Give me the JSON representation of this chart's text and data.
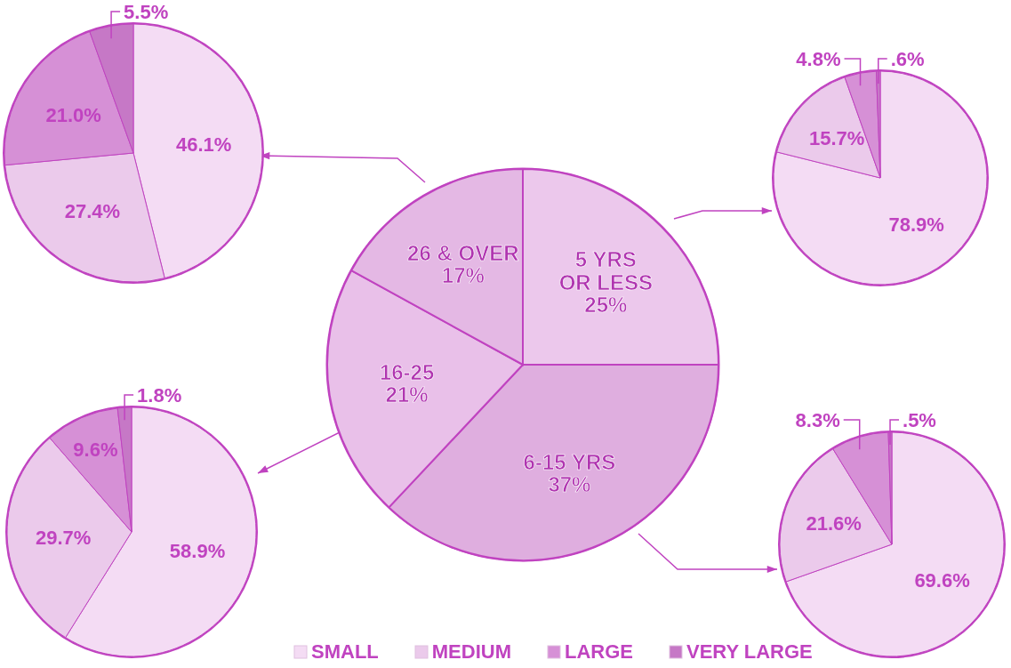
{
  "chart_data": [
    {
      "type": "pie",
      "categories": [
        "5 YRS\nOR LESS",
        "6-15 YRS",
        "16-25",
        "26 & OVER"
      ],
      "values": [
        25,
        37,
        21,
        17
      ],
      "value_labels": [
        "25%",
        "37%",
        "21%",
        "17%"
      ],
      "colors": [
        "#ecc8ec",
        "#dfaedf",
        "#e9c0e9",
        "#e4b8e4"
      ]
    },
    {
      "type": "pie",
      "categories": [
        "SMALL",
        "MEDIUM",
        "LARGE",
        "VERY LARGE"
      ],
      "values": [
        46.1,
        27.4,
        21.0,
        5.5
      ],
      "value_labels": [
        "46.1%",
        "27.4%",
        "21.0%",
        "5.5%"
      ],
      "colors": [
        "#f4dcf4",
        "#ebcaeb",
        "#d690d6",
        "#c678c6"
      ],
      "legend": "bottom"
    },
    {
      "type": "pie",
      "categories": [
        null,
        null,
        null,
        null
      ],
      "values": [
        78.9,
        15.7,
        4.8,
        0.6
      ],
      "value_labels": [
        "78.9%",
        "15.7%",
        "4.8%",
        ".6%"
      ],
      "colors": [
        "#f4dcf4",
        "#ebcaeb",
        "#d690d6",
        "#c678c6"
      ]
    },
    {
      "type": "pie",
      "categories": [
        null,
        null,
        null,
        null
      ],
      "values": [
        58.9,
        29.7,
        9.6,
        1.8
      ],
      "value_labels": [
        "58.9%",
        "29.7%",
        "9.6%",
        "1.8%"
      ],
      "colors": [
        "#f4dcf4",
        "#ebcaeb",
        "#d690d6",
        "#c678c6"
      ]
    },
    {
      "type": "pie",
      "categories": [
        null,
        null,
        null,
        null
      ],
      "values": [
        69.6,
        21.6,
        8.3,
        0.5
      ],
      "value_labels": [
        "69.6%",
        "21.6%",
        "8.3%",
        ".5%"
      ],
      "colors": [
        "#f4dcf4",
        "#ebcaeb",
        "#d690d6",
        "#c678c6"
      ]
    }
  ]
}
